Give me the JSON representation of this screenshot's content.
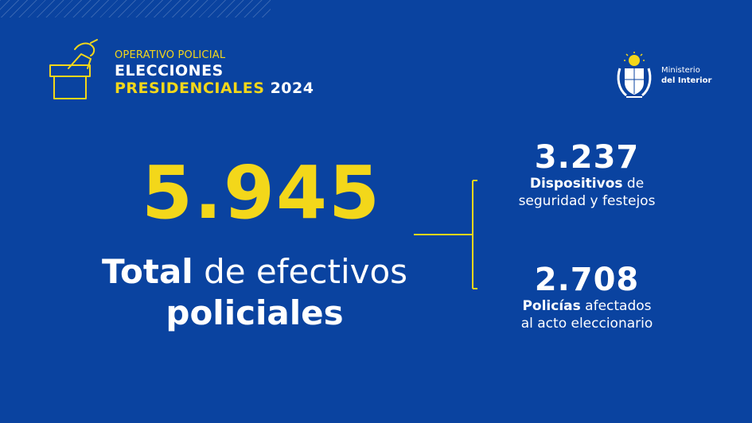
{
  "header": {
    "subtitle": "OPERATIVO POLICIAL",
    "line1": "ELECCIONES",
    "line2_yellow": "PRESIDENCIALES",
    "line2_white": "2024"
  },
  "ministry": {
    "line1": "Ministerio",
    "line2": "del Interior"
  },
  "main": {
    "total_value": "5.945",
    "label_bold": "Total",
    "label_rest": "de efectivos",
    "label_line2": "policiales"
  },
  "stats": [
    {
      "value": "3.237",
      "desc_bold": "Dispositivos",
      "desc_rest": "de",
      "desc_line2": "seguridad y festejos"
    },
    {
      "value": "2.708",
      "desc_bold": "Policías",
      "desc_rest": "afectados",
      "desc_line2": "al acto eleccionario"
    }
  ],
  "colors": {
    "background": "#0a43a0",
    "accent": "#f3d71a",
    "text": "#ffffff"
  },
  "icons": [
    "ballot-box-icon",
    "uruguay-coat-of-arms-icon"
  ]
}
